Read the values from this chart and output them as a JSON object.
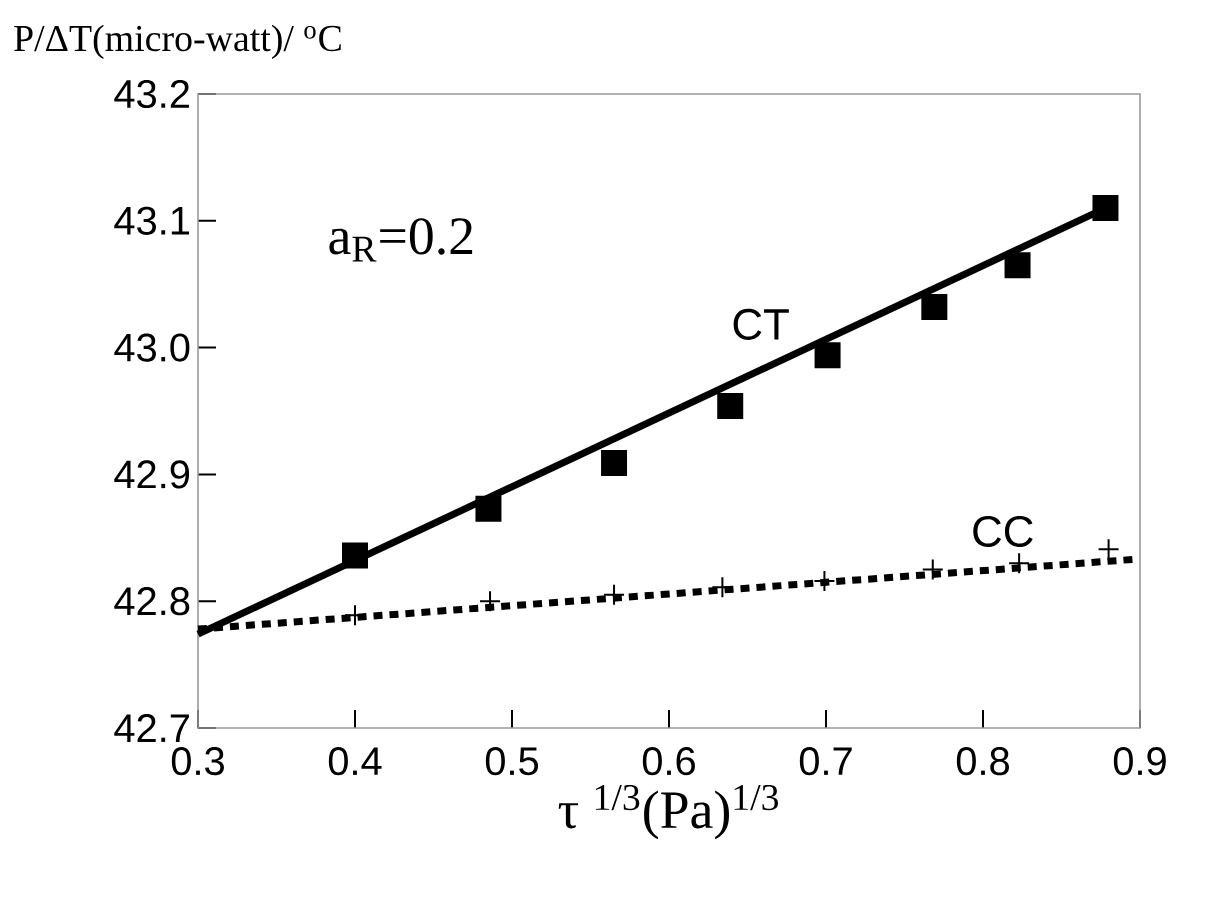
{
  "chart_data": {
    "type": "scatter",
    "xlabel": "τ $^{1/3}$(Pa)$^{1/3}$",
    "ylabel": "P/ΔT(micro-watt)/ $^{o}$C",
    "annotations": [
      "a$_{R}$=0.2"
    ],
    "xlim": [
      0.3,
      0.9
    ],
    "ylim": [
      42.7,
      43.2
    ],
    "xticks": [
      0.3,
      0.4,
      0.5,
      0.6,
      0.7,
      0.8,
      0.9
    ],
    "yticks": [
      42.7,
      42.8,
      42.9,
      {
        "value": 43.0,
        "label": "43.0"
      },
      43.1,
      43.2
    ],
    "series": [
      {
        "marker": "square",
        "color": "#000000",
        "x": [
          0.4,
          0.485,
          0.565,
          0.639,
          0.701,
          0.769,
          0.822,
          0.878
        ],
        "values": [
          42.836,
          42.873,
          42.909,
          42.954,
          42.994,
          43.032,
          43.065,
          43.11
        ]
      },
      {
        "type": "line",
        "name": "CT",
        "line_style": "solid",
        "color": "#000000",
        "x": [
          0.3,
          0.878
        ],
        "values": [
          42.774,
          43.11
        ]
      },
      {
        "marker": "cross",
        "color": "#000000",
        "x": [
          0.4,
          0.486,
          0.565,
          0.634,
          0.699,
          0.768,
          0.823,
          0.88
        ],
        "values": [
          42.789,
          42.8,
          42.805,
          42.811,
          42.816,
          42.825,
          42.83,
          42.841
        ]
      },
      {
        "type": "line",
        "name": "CC",
        "line_style": "dotted",
        "color": "#000000",
        "x": [
          0.3,
          0.896
        ],
        "values": [
          42.778,
          42.833
        ]
      }
    ]
  }
}
